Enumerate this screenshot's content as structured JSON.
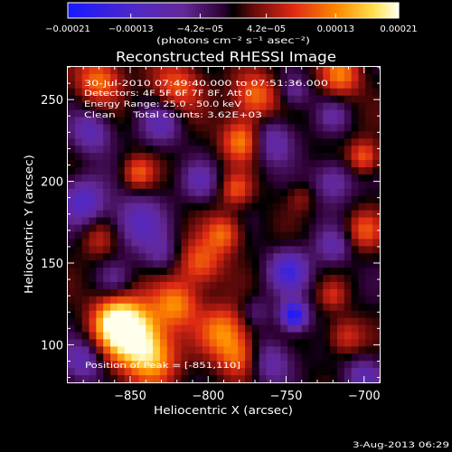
{
  "chart_data": {
    "type": "heatmap",
    "title": "Reconstructed RHESSI Image",
    "xlabel": "Heliocentric X (arcsec)",
    "ylabel": "Heliocentric Y (arcsec)",
    "xlim": [
      -890,
      -690
    ],
    "ylim": [
      77,
      270
    ],
    "x_ticks": [
      -850,
      -800,
      -750,
      -700
    ],
    "y_ticks": [
      100,
      150,
      200,
      250
    ],
    "x_tick_labels": [
      "−850",
      "−800",
      "−750",
      "−700"
    ],
    "y_tick_labels": [
      "100",
      "150",
      "200",
      "250"
    ],
    "colorbar": {
      "range": [
        -0.00021,
        0.00021
      ],
      "ticks": [
        -0.00021,
        -0.00013,
        -4.2e-05,
        4.2e-05,
        0.00013,
        0.00021
      ],
      "tick_labels": [
        "−0.00021",
        "−0.00013",
        "−4.2e−05",
        "4.2e−05",
        "0.00013",
        "0.00021"
      ],
      "unit_label": "(photons cm⁻² s⁻¹ asec⁻²)"
    },
    "annotations": [
      "30-Jul-2010 07:49:40.000 to 07:51:36.000",
      "Detectors: 4F 5F 6F 7F 8F, Att 0",
      "Energy Range: 25.0 - 50.0 keV",
      "Clean     Total counts: 3.62E+03"
    ],
    "peak_label": "Position of Peak = [-851,110]",
    "peak_position": [
      -851,
      110
    ],
    "blobs": [
      {
        "x": -848,
        "y": 106,
        "v": 0.00021,
        "r": 14
      },
      {
        "x": -860,
        "y": 115,
        "v": 0.00014,
        "r": 10
      },
      {
        "x": -835,
        "y": 90,
        "v": 0.00011,
        "r": 11
      },
      {
        "x": -820,
        "y": 125,
        "v": 0.00012,
        "r": 10
      },
      {
        "x": -790,
        "y": 108,
        "v": 0.00013,
        "r": 11
      },
      {
        "x": -780,
        "y": 92,
        "v": 0.0001,
        "r": 9
      },
      {
        "x": -805,
        "y": 150,
        "v": 0.00011,
        "r": 10
      },
      {
        "x": -790,
        "y": 168,
        "v": 0.00011,
        "r": 8
      },
      {
        "x": -782,
        "y": 195,
        "v": 9e-05,
        "r": 7
      },
      {
        "x": -778,
        "y": 225,
        "v": 0.00014,
        "r": 9
      },
      {
        "x": -770,
        "y": 252,
        "v": 0.00012,
        "r": 10
      },
      {
        "x": -820,
        "y": 258,
        "v": 0.0001,
        "r": 11
      },
      {
        "x": -870,
        "y": 262,
        "v": 0.00012,
        "r": 10
      },
      {
        "x": -845,
        "y": 205,
        "v": 0.0001,
        "r": 7
      },
      {
        "x": -715,
        "y": 265,
        "v": 0.00012,
        "r": 9
      },
      {
        "x": -700,
        "y": 215,
        "v": 0.00011,
        "r": 7
      },
      {
        "x": -700,
        "y": 170,
        "v": 9e-05,
        "r": 8
      },
      {
        "x": -712,
        "y": 105,
        "v": 8e-05,
        "r": 8
      },
      {
        "x": -720,
        "y": 130,
        "v": 6e-05,
        "r": 6
      },
      {
        "x": -870,
        "y": 165,
        "v": 6e-05,
        "r": 8
      },
      {
        "x": -740,
        "y": 190,
        "v": 4e-05,
        "r": 6
      },
      {
        "x": -745,
        "y": 118,
        "v": -0.00021,
        "r": 6
      },
      {
        "x": -748,
        "y": 145,
        "v": -0.00014,
        "r": 9
      },
      {
        "x": -880,
        "y": 188,
        "v": -0.00012,
        "r": 10
      },
      {
        "x": -845,
        "y": 175,
        "v": -0.0001,
        "r": 12
      },
      {
        "x": -760,
        "y": 225,
        "v": -0.0001,
        "r": 10
      },
      {
        "x": -720,
        "y": 200,
        "v": -9e-05,
        "r": 9
      },
      {
        "x": -875,
        "y": 230,
        "v": -0.0001,
        "r": 9
      },
      {
        "x": -830,
        "y": 235,
        "v": -9e-05,
        "r": 9
      },
      {
        "x": -880,
        "y": 90,
        "v": -0.0001,
        "r": 9
      },
      {
        "x": -760,
        "y": 90,
        "v": -9e-05,
        "r": 10
      },
      {
        "x": -805,
        "y": 200,
        "v": -8e-05,
        "r": 8
      },
      {
        "x": -720,
        "y": 160,
        "v": -8e-05,
        "r": 8
      },
      {
        "x": -700,
        "y": 80,
        "v": -9e-05,
        "r": 9
      },
      {
        "x": -830,
        "y": 155,
        "v": -6e-05,
        "r": 8
      },
      {
        "x": -745,
        "y": 255,
        "v": -7e-05,
        "r": 7
      },
      {
        "x": -720,
        "y": 240,
        "v": -6e-05,
        "r": 7
      },
      {
        "x": -860,
        "y": 140,
        "v": -5e-05,
        "r": 7
      },
      {
        "x": -770,
        "y": 120,
        "v": -5e-05,
        "r": 7
      }
    ]
  },
  "footer": {
    "date": "3-Aug-2013 06:29"
  }
}
